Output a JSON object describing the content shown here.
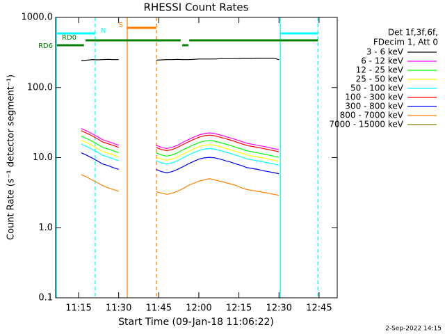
{
  "chart_data": {
    "type": "line",
    "title": "RHESSI Count Rates",
    "x_label": "Start Time (09-Jan-18 11:06:22)",
    "y_label": "Count Rate (s⁻¹ detector segment⁻¹)",
    "legend_header": [
      "Det 1f,3f,6f,",
      "FDecim 1, Att 0"
    ],
    "footer": "2-Sep-2022 14:15",
    "y_log": true,
    "xlim": [
      666.4,
      771.8
    ],
    "xticks": [
      {
        "value": 675,
        "label": "11:15"
      },
      {
        "value": 690,
        "label": "11:30"
      },
      {
        "value": 705,
        "label": "11:45"
      },
      {
        "value": 720,
        "label": "12:00"
      },
      {
        "value": 735,
        "label": "12:15"
      },
      {
        "value": 750,
        "label": "12:30"
      },
      {
        "value": 765,
        "label": "12:45"
      }
    ],
    "ylim": [
      0.1,
      1000
    ],
    "yticks": [
      0.1,
      {
        "value": 1,
        "label": "1.0"
      },
      {
        "value": 10,
        "label": "10.0"
      },
      {
        "value": 100,
        "label": "100.0"
      },
      {
        "value": 1000,
        "label": "1000.0"
      }
    ],
    "x": [
      676,
      678,
      680,
      682,
      684,
      686,
      688,
      690,
      697,
      704,
      706,
      708,
      710,
      712,
      714,
      716,
      718,
      720,
      722,
      724,
      726,
      728,
      730,
      732,
      734,
      736,
      738,
      740,
      742,
      744,
      746,
      748,
      750
    ],
    "series": [
      {
        "name": "3 - 6 keV",
        "color": "#000000",
        "values": [
          240,
          245,
          250,
          248,
          250,
          252,
          250,
          250,
          null,
          245,
          248,
          250,
          250,
          252,
          250,
          250,
          252,
          255,
          255,
          255,
          255,
          258,
          258,
          258,
          258,
          260,
          260,
          260,
          262,
          262,
          262,
          262,
          250
        ]
      },
      {
        "name": "6 - 12 keV",
        "color": "#ff00ff",
        "values": [
          26,
          24,
          22,
          20,
          18,
          17,
          16,
          15,
          null,
          15,
          14,
          13.5,
          14,
          15,
          16.5,
          18,
          19.5,
          21,
          22,
          22.5,
          22,
          21,
          20,
          19,
          18,
          17,
          16,
          15.5,
          15,
          14.5,
          14,
          13.5,
          13
        ]
      },
      {
        "name": "12 - 25 keV",
        "color": "#00ff00",
        "values": [
          20.3,
          18.7,
          17.2,
          15.6,
          14.0,
          13.3,
          12.5,
          11.7,
          null,
          11.7,
          10.9,
          10.5,
          10.9,
          11.7,
          12.9,
          14.0,
          15.2,
          16.4,
          17.2,
          17.6,
          17.2,
          16.4,
          15.6,
          14.8,
          14.0,
          13.3,
          12.5,
          12.1,
          11.7,
          11.3,
          10.9,
          10.5,
          10.1
        ]
      },
      {
        "name": "25 - 50 keV",
        "color": "#ffff00",
        "values": [
          17.7,
          16.3,
          15.0,
          13.6,
          12.2,
          11.6,
          10.9,
          10.2,
          null,
          10.2,
          9.5,
          9.2,
          9.5,
          10.2,
          11.2,
          12.2,
          13.3,
          14.3,
          15.0,
          15.3,
          15.0,
          14.3,
          13.6,
          12.9,
          12.2,
          11.6,
          10.9,
          10.5,
          10.2,
          9.9,
          9.5,
          9.2,
          8.8
        ]
      },
      {
        "name": "50 - 100 keV",
        "color": "#00ffff",
        "values": [
          15.6,
          14.4,
          13.2,
          12.0,
          10.8,
          10.2,
          9.6,
          9.0,
          null,
          9.0,
          8.4,
          8.1,
          8.4,
          9.0,
          9.9,
          10.8,
          11.7,
          12.6,
          13.2,
          13.5,
          13.2,
          12.6,
          12.0,
          11.4,
          10.8,
          10.2,
          9.6,
          9.3,
          9.0,
          8.7,
          8.4,
          8.1,
          7.8
        ]
      },
      {
        "name": "100 - 300 keV",
        "color": "#ff0000",
        "values": [
          24.2,
          22.3,
          20.5,
          18.6,
          16.7,
          15.8,
          14.9,
          14.0,
          null,
          14.0,
          13.0,
          12.6,
          13.0,
          14.0,
          15.3,
          16.7,
          18.1,
          19.5,
          20.5,
          20.9,
          20.5,
          19.5,
          18.6,
          17.7,
          16.7,
          15.8,
          14.9,
          14.4,
          14.0,
          13.5,
          13.0,
          12.6,
          12.1
        ]
      },
      {
        "name": "300 - 800 keV",
        "color": "#0000ff",
        "values": [
          11.7,
          10.8,
          9.9,
          9.0,
          8.1,
          7.7,
          7.2,
          6.8,
          null,
          6.8,
          6.3,
          6.1,
          6.3,
          6.8,
          7.4,
          8.1,
          8.8,
          9.5,
          9.9,
          10.1,
          9.9,
          9.5,
          9.0,
          8.6,
          8.1,
          7.7,
          7.2,
          7.0,
          6.8,
          6.5,
          6.3,
          6.1,
          5.9
        ]
      },
      {
        "name": "800 - 7000 keV",
        "color": "#ff8000",
        "values": [
          5.7,
          5.3,
          4.8,
          4.4,
          4.0,
          3.7,
          3.5,
          3.3,
          null,
          3.3,
          3.1,
          3.0,
          3.1,
          3.3,
          3.6,
          4.0,
          4.3,
          4.6,
          4.8,
          5.0,
          4.8,
          4.6,
          4.4,
          4.2,
          4.0,
          3.7,
          3.5,
          3.4,
          3.3,
          3.2,
          3.1,
          3.0,
          2.9
        ]
      },
      {
        "name": "7000 - 15000 keV",
        "color": "#808000",
        "values": [
          null,
          null,
          null,
          null,
          null,
          null,
          null,
          null,
          null,
          null,
          null,
          null,
          null,
          null,
          null,
          null,
          null,
          null,
          null,
          null,
          null,
          null,
          null,
          null,
          null,
          null,
          null,
          null,
          null,
          null,
          null,
          null,
          null
        ]
      }
    ],
    "vlines": [
      {
        "x": 666.7,
        "color": "#00ffff",
        "dashed": false
      },
      {
        "x": 750.5,
        "color": "#00ffff",
        "dashed": false
      },
      {
        "x": 681.2,
        "color": "#00ffff",
        "dashed": true
      },
      {
        "x": 764.6,
        "color": "#00ffff",
        "dashed": true
      },
      {
        "x": 693.2,
        "color": "#ff8000",
        "dashed": false
      },
      {
        "x": 704.1,
        "color": "#ff8000",
        "dashed": true
      }
    ],
    "flags": [
      {
        "label": "N",
        "color": "#00ffff",
        "level": 48,
        "segments": [
          [
            666.9,
            681.2
          ],
          [
            750.5,
            764.6
          ]
        ]
      },
      {
        "label": "S",
        "color": "#ff8000",
        "level": 40,
        "segments": [
          [
            693.2,
            704.1
          ]
        ]
      },
      {
        "label": "RD0",
        "color": "#008000",
        "level": 58,
        "segments": [
          [
            677.6,
            713.2
          ],
          [
            716.4,
            764.6
          ]
        ]
      },
      {
        "label": "RD6",
        "color": "#008000",
        "level": 65,
        "segments": [
          [
            666.9,
            677.0
          ],
          [
            713.8,
            716.1
          ]
        ]
      }
    ]
  }
}
